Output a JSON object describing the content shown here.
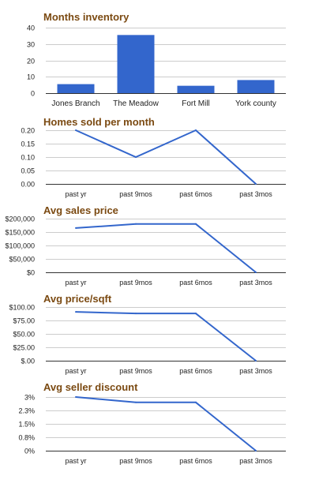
{
  "chart_data": [
    {
      "type": "bar",
      "title": "Months inventory",
      "categories": [
        "Jones Branch",
        "The Meadow",
        "Fort Mill",
        "York county"
      ],
      "values": [
        5.5,
        35.5,
        4.5,
        8
      ],
      "ylim": [
        0,
        40
      ],
      "yticks": [
        0,
        10,
        20,
        30,
        40
      ],
      "ytick_labels": [
        "0",
        "10",
        "20",
        "30",
        "40"
      ],
      "grid": true,
      "color": "#3366cc"
    },
    {
      "type": "line",
      "title": "Homes sold per month",
      "categories": [
        "past yr",
        "past 9mos",
        "past 6mos",
        "past 3mos"
      ],
      "values": [
        0.2,
        0.1,
        0.2,
        0
      ],
      "ylim": [
        0,
        0.2
      ],
      "yticks": [
        0,
        0.05,
        0.1,
        0.15,
        0.2
      ],
      "ytick_labels": [
        "0.00",
        "0.05",
        "0.10",
        "0.15",
        "0.20"
      ],
      "grid": true,
      "color": "#3366cc"
    },
    {
      "type": "line",
      "title": "Avg sales price",
      "categories": [
        "past yr",
        "past 9mos",
        "past 6mos",
        "past 3mos"
      ],
      "values": [
        165000,
        180000,
        180000,
        0
      ],
      "ylim": [
        0,
        200000
      ],
      "yticks": [
        0,
        50000,
        100000,
        150000,
        200000
      ],
      "ytick_labels": [
        "$0",
        "$50,000",
        "$100,000",
        "$150,000",
        "$200,000"
      ],
      "grid": true,
      "color": "#3366cc"
    },
    {
      "type": "line",
      "title": "Avg price/sqft",
      "categories": [
        "past yr",
        "past 9mos",
        "past 6mos",
        "past 3mos"
      ],
      "values": [
        91,
        88,
        88,
        0
      ],
      "ylim": [
        0,
        100
      ],
      "yticks": [
        0,
        25,
        50,
        75,
        100
      ],
      "ytick_labels": [
        "$.00",
        "$25.00",
        "$50.00",
        "$75.00",
        "$100.00"
      ],
      "grid": true,
      "color": "#3366cc"
    },
    {
      "type": "line",
      "title": "Avg seller discount",
      "categories": [
        "past yr",
        "past 9mos",
        "past 6mos",
        "past 3mos"
      ],
      "values": [
        3,
        2.7,
        2.7,
        0
      ],
      "ylim": [
        0,
        3
      ],
      "yticks": [
        0,
        0.75,
        1.5,
        2.25,
        3
      ],
      "ytick_labels": [
        "0%",
        "0.8%",
        "1.5%",
        "2.3%",
        "3%"
      ],
      "grid": true,
      "color": "#3366cc"
    }
  ]
}
